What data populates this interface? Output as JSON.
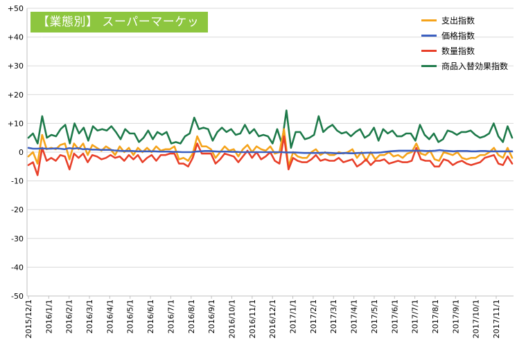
{
  "badge_title": "【業態別】 スーパーマーケット",
  "chart_data": {
    "type": "line",
    "title": "【業態別】 スーパーマーケット",
    "ylim": [
      -50,
      50
    ],
    "yticks": [
      "+50",
      "+40",
      "+30",
      "+20",
      "+10",
      "0",
      "-10",
      "-20",
      "-30",
      "-40",
      "-50"
    ],
    "ytick_values": [
      50,
      40,
      30,
      20,
      10,
      0,
      -10,
      -20,
      -30,
      -40,
      -50
    ],
    "xtick_labels": [
      "2015/12/1",
      "2016/1/1",
      "2016/2/1",
      "2016/3/1",
      "2016/4/1",
      "2016/5/1",
      "2016/6/1",
      "2016/7/1",
      "2016/8/1",
      "2016/9/1",
      "2016/10/1",
      "2016/11/1",
      "2016/12/1",
      "2017/1/1",
      "2017/2/1",
      "2017/3/1",
      "2017/4/1",
      "2017/5/1",
      "2017/6/1",
      "2017/7/1",
      "2017/8/1",
      "2017/9/1",
      "2017/10/1",
      "2017/11/1"
    ],
    "grid": true,
    "legend_position": "top-right",
    "series": [
      {
        "name": "支出指数",
        "color": "#f5a31a",
        "values": [
          -1.5,
          0,
          -4,
          6,
          1,
          1.5,
          1,
          2.5,
          3,
          -2.5,
          3,
          1,
          3,
          -1,
          2.5,
          1.5,
          0.5,
          2,
          1,
          -1,
          2,
          0,
          1.5,
          -1,
          1.5,
          0,
          1.5,
          0,
          2,
          0.5,
          1,
          1,
          2,
          -2.5,
          -2,
          -3,
          -0.5,
          5.5,
          2,
          2,
          1,
          -2,
          0,
          2,
          0.5,
          1,
          -1.5,
          1,
          2.5,
          0,
          2,
          1,
          0.5,
          2,
          -0.5,
          0,
          8,
          -5,
          0,
          -1.5,
          -2,
          -2,
          0,
          1,
          -1,
          0,
          -1,
          -1,
          0,
          -0.5,
          0,
          1,
          -2,
          0,
          -3,
          0,
          -2.5,
          -1,
          -1,
          0,
          -1.5,
          -1,
          -2,
          -0.5,
          0,
          3,
          -0.5,
          -1,
          0.5,
          -2.5,
          -3,
          0,
          -0.5,
          -1,
          0,
          -2,
          -2.5,
          -2,
          -2,
          -1,
          -1,
          0,
          1.5,
          -1,
          -2,
          1.5,
          -2
        ]
      },
      {
        "name": "価格指数",
        "color": "#3b5fc0",
        "values": [
          1.5,
          1.2,
          1.2,
          1.3,
          1.2,
          1.2,
          1.3,
          1.2,
          1,
          1.4,
          1.2,
          1.4,
          1,
          1.1,
          0.9,
          0.9,
          0.8,
          0.8,
          0.8,
          0.6,
          0.5,
          0.4,
          0.4,
          0.4,
          0.3,
          0.3,
          0.3,
          0.3,
          0.3,
          0.2,
          0.2,
          0.2,
          0.1,
          0.1,
          0,
          0,
          0,
          0.2,
          0.3,
          0.4,
          0.4,
          0.3,
          0.2,
          0.2,
          0.2,
          0.1,
          0.1,
          0,
          0,
          0,
          0,
          0,
          0,
          0,
          0,
          0,
          0,
          -0.1,
          -0.1,
          -0.1,
          -0.2,
          -0.3,
          -0.3,
          -0.3,
          -0.3,
          -0.2,
          -0.2,
          -0.3,
          -0.4,
          -0.4,
          -0.3,
          -0.4,
          -0.4,
          -0.3,
          -0.3,
          -0.2,
          -0.2,
          -0.2,
          -0.1,
          0.1,
          0.3,
          0.4,
          0.5,
          0.5,
          0.5,
          0.5,
          0.5,
          0.5,
          0.4,
          0.4,
          0.5,
          0.7,
          0.5,
          0.4,
          0.3,
          0.4,
          0.4,
          0.4,
          0.3,
          0.3,
          0.4,
          0.4,
          0.3,
          0.3,
          0.3,
          0.3,
          0.3,
          0.3
        ]
      },
      {
        "name": "数量指数",
        "color": "#e8402a",
        "values": [
          -4.5,
          -3.5,
          -8,
          1.5,
          -3,
          -2,
          -3,
          -1,
          -1.5,
          -6,
          -0.5,
          -2,
          -0.5,
          -3.5,
          -1,
          -1.5,
          -2.5,
          -2,
          -1,
          -2,
          -1.5,
          -3,
          -1,
          -2.5,
          -1,
          -3.5,
          -2,
          -1,
          -3,
          -1,
          -1,
          -0.5,
          -0.5,
          -4,
          -4,
          -5,
          -2,
          3,
          -0.5,
          -0.5,
          -0.5,
          -4,
          -2.5,
          -0.5,
          -1,
          -1.5,
          -3.5,
          -1.5,
          0.5,
          -2,
          0,
          -2.5,
          -1.5,
          0,
          -3,
          -4,
          5.5,
          -6,
          -2,
          -3,
          -3.5,
          -3.5,
          -2.5,
          -1,
          -3,
          -2.5,
          -3,
          -3,
          -2,
          -3.5,
          -3,
          -2.5,
          -5,
          -4,
          -2.5,
          -4.5,
          -3,
          -3,
          -2.5,
          -4,
          -3.5,
          -3,
          -3.5,
          -3.5,
          -3,
          1.5,
          -2.5,
          -3,
          -3,
          -5,
          -5,
          -2.5,
          -3,
          -4.5,
          -3.5,
          -3,
          -4,
          -4.5,
          -4,
          -3.5,
          -2,
          -1.5,
          -1,
          -4,
          -4.5,
          -1.5,
          -4
        ]
      },
      {
        "name": "商品入替効果指数",
        "color": "#1e7a4a",
        "values": [
          5,
          6.5,
          3,
          12.5,
          5,
          6,
          5.5,
          8,
          9.5,
          3,
          10,
          6.5,
          8.5,
          4,
          9,
          7.5,
          8,
          7.5,
          9,
          7,
          4.5,
          8,
          6.5,
          6.5,
          3.5,
          5,
          7.5,
          4.5,
          7,
          6,
          7,
          3,
          3.5,
          3,
          5.5,
          6.5,
          12,
          8,
          8.5,
          8,
          4,
          7,
          8.5,
          7,
          8,
          6,
          6.5,
          9.5,
          6.5,
          8,
          5.5,
          6,
          5.5,
          3,
          8,
          3,
          14.5,
          1.5,
          7,
          7,
          4.5,
          5,
          6,
          12.5,
          7,
          8.5,
          9.5,
          7.5,
          6.5,
          7,
          5.5,
          7,
          8,
          5,
          6,
          8.5,
          4,
          8,
          6.5,
          7.5,
          5.5,
          5.5,
          6.5,
          6.5,
          4,
          9.5,
          6,
          4.5,
          6.5,
          3.5,
          4.5,
          7.5,
          7,
          6,
          7,
          7,
          7.5,
          6,
          5,
          5.5,
          6.5,
          10,
          5.5,
          3.5,
          9,
          5
        ]
      }
    ]
  }
}
